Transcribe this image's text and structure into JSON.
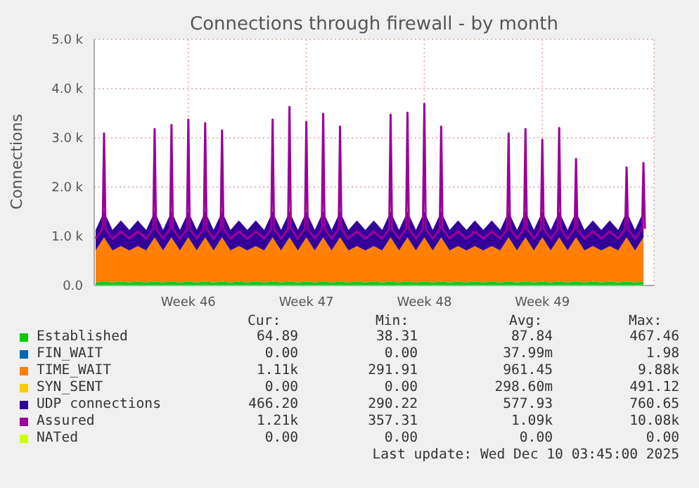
{
  "chart_data": {
    "type": "area",
    "stacked": true,
    "title": "Connections through firewall - by month",
    "ylabel": "Connections",
    "x": [
      "2025-11-08T00:00",
      "2025-11-08T12:00",
      "2025-11-09T00:00",
      "2025-11-09T12:00",
      "2025-11-10T00:00",
      "2025-11-10T12:00",
      "2025-11-11T00:00",
      "2025-11-11T12:00",
      "2025-11-12T00:00",
      "2025-11-12T12:00",
      "2025-11-13T00:00",
      "2025-11-13T12:00",
      "2025-11-14T00:00",
      "2025-11-14T12:00",
      "2025-11-15T00:00",
      "2025-11-15T12:00",
      "2025-11-16T00:00",
      "2025-11-16T12:00",
      "2025-11-17T00:00",
      "2025-11-17T12:00",
      "2025-11-18T00:00",
      "2025-11-18T12:00",
      "2025-11-19T00:00",
      "2025-11-19T12:00",
      "2025-11-20T00:00",
      "2025-11-20T12:00",
      "2025-11-21T00:00",
      "2025-11-21T12:00",
      "2025-11-22T00:00",
      "2025-11-22T12:00",
      "2025-11-23T00:00",
      "2025-11-23T12:00",
      "2025-11-24T00:00",
      "2025-11-24T12:00",
      "2025-11-25T00:00",
      "2025-11-25T12:00",
      "2025-11-26T00:00",
      "2025-11-26T12:00",
      "2025-11-27T00:00",
      "2025-11-27T12:00",
      "2025-11-28T00:00",
      "2025-11-28T12:00",
      "2025-11-29T00:00",
      "2025-11-29T12:00",
      "2025-11-30T00:00",
      "2025-11-30T12:00",
      "2025-12-01T00:00",
      "2025-12-01T12:00",
      "2025-12-02T00:00",
      "2025-12-02T12:00",
      "2025-12-03T00:00",
      "2025-12-03T12:00",
      "2025-12-04T00:00",
      "2025-12-04T12:00",
      "2025-12-05T00:00",
      "2025-12-05T12:00",
      "2025-12-06T00:00",
      "2025-12-06T12:00",
      "2025-12-07T00:00",
      "2025-12-07T12:00",
      "2025-12-08T00:00",
      "2025-12-08T12:00",
      "2025-12-09T00:00",
      "2025-12-09T12:00",
      "2025-12-10T00:00",
      "2025-12-10T12:00"
    ],
    "series": [
      {
        "name": "Established",
        "color": "#00cc00",
        "values": [
          60,
          80,
          60,
          80,
          60,
          80,
          60,
          80,
          60,
          80,
          60,
          80,
          60,
          80,
          60,
          80,
          60,
          80,
          60,
          80,
          60,
          80,
          60,
          80,
          60,
          80,
          60,
          80,
          60,
          80,
          60,
          80,
          60,
          80,
          60,
          80,
          60,
          80,
          60,
          80,
          60,
          80,
          60,
          80,
          60,
          80,
          60,
          80,
          60,
          80,
          60,
          80,
          60,
          80,
          60,
          80,
          60,
          80,
          60,
          80,
          60,
          80,
          60,
          80,
          60,
          80
        ]
      },
      {
        "name": "FIN_WAIT",
        "color": "#0066b3",
        "values": [
          null,
          null,
          null,
          null,
          null,
          null,
          null,
          null,
          null,
          null,
          null,
          null,
          null,
          null,
          null,
          null,
          null,
          null,
          null,
          null,
          null,
          null,
          null,
          null,
          null,
          null,
          null,
          null,
          null,
          null,
          null,
          null,
          null,
          null,
          null,
          null,
          null,
          null,
          null,
          null,
          null,
          null,
          null,
          null,
          null,
          null,
          null,
          null,
          null,
          null,
          null,
          null,
          null,
          null,
          null,
          null,
          null,
          null,
          null,
          null,
          null,
          null,
          null,
          null,
          null,
          null
        ]
      },
      {
        "name": "TIME_WAIT",
        "color": "#ff8000",
        "values": [
          650,
          900,
          650,
          720,
          650,
          720,
          650,
          900,
          650,
          900,
          650,
          900,
          650,
          900,
          650,
          900,
          650,
          720,
          650,
          720,
          650,
          900,
          650,
          900,
          650,
          900,
          650,
          900,
          650,
          900,
          650,
          720,
          650,
          720,
          650,
          900,
          650,
          900,
          650,
          900,
          650,
          900,
          650,
          720,
          650,
          720,
          650,
          720,
          650,
          900,
          650,
          900,
          650,
          900,
          650,
          900,
          650,
          900,
          650,
          720,
          650,
          720,
          650,
          900,
          650,
          900
        ]
      },
      {
        "name": "SYN_SENT",
        "color": "#ffcc00",
        "values": [
          null,
          null,
          null,
          null,
          null,
          null,
          null,
          null,
          null,
          null,
          null,
          null,
          null,
          null,
          null,
          null,
          null,
          null,
          null,
          null,
          null,
          null,
          null,
          null,
          null,
          null,
          null,
          null,
          null,
          null,
          null,
          null,
          null,
          null,
          null,
          null,
          null,
          null,
          null,
          null,
          null,
          null,
          null,
          null,
          null,
          null,
          null,
          null,
          null,
          null,
          null,
          null,
          null,
          null,
          null,
          null,
          null,
          null,
          null,
          null,
          null,
          null,
          null,
          null,
          null,
          null
        ]
      },
      {
        "name": "UDP connections",
        "color": "#330099",
        "values": [
          420,
          520,
          420,
          520,
          420,
          520,
          420,
          520,
          420,
          520,
          420,
          520,
          420,
          520,
          420,
          520,
          420,
          520,
          420,
          520,
          420,
          520,
          420,
          520,
          420,
          520,
          420,
          520,
          420,
          520,
          420,
          520,
          420,
          520,
          420,
          520,
          420,
          520,
          420,
          520,
          420,
          520,
          420,
          520,
          420,
          520,
          420,
          520,
          420,
          520,
          420,
          520,
          420,
          520,
          420,
          520,
          420,
          520,
          420,
          520,
          420,
          520,
          420,
          520,
          420,
          520
        ]
      },
      {
        "name": "Assured",
        "color": "#990099",
        "type": "line",
        "x": [
          "2025-11-08T00:00",
          "2025-11-08T10:00",
          "2025-11-08T12:00",
          "2025-11-08T14:00",
          "2025-11-09T00:00",
          "2025-11-09T12:00",
          "2025-11-10T00:00",
          "2025-11-10T12:00",
          "2025-11-11T00:00",
          "2025-11-11T10:00",
          "2025-11-11T12:00",
          "2025-11-11T14:00",
          "2025-11-12T00:00",
          "2025-11-12T10:00",
          "2025-11-12T12:00",
          "2025-11-12T14:00",
          "2025-11-13T00:00",
          "2025-11-13T10:00",
          "2025-11-13T12:00",
          "2025-11-13T14:00",
          "2025-11-14T00:00",
          "2025-11-14T10:00",
          "2025-11-14T12:00",
          "2025-11-14T14:00",
          "2025-11-15T00:00",
          "2025-11-15T10:00",
          "2025-11-15T12:00",
          "2025-11-15T14:00",
          "2025-11-16T00:00",
          "2025-11-16T12:00",
          "2025-11-17T00:00",
          "2025-11-17T12:00",
          "2025-11-18T00:00",
          "2025-11-18T10:00",
          "2025-11-18T12:00",
          "2025-11-18T14:00",
          "2025-11-19T00:00",
          "2025-11-19T10:00",
          "2025-11-19T12:00",
          "2025-11-19T14:00",
          "2025-11-20T00:00",
          "2025-11-20T10:00",
          "2025-11-20T12:00",
          "2025-11-20T14:00",
          "2025-11-21T00:00",
          "2025-11-21T10:00",
          "2025-11-21T12:00",
          "2025-11-21T14:00",
          "2025-11-22T00:00",
          "2025-11-22T10:00",
          "2025-11-22T12:00",
          "2025-11-22T14:00",
          "2025-11-23T00:00",
          "2025-11-23T12:00",
          "2025-11-24T00:00",
          "2025-11-24T12:00",
          "2025-11-25T00:00",
          "2025-11-25T10:00",
          "2025-11-25T12:00",
          "2025-11-25T14:00",
          "2025-11-26T00:00",
          "2025-11-26T10:00",
          "2025-11-26T12:00",
          "2025-11-26T14:00",
          "2025-11-27T00:00",
          "2025-11-27T10:00",
          "2025-11-27T12:00",
          "2025-11-27T14:00",
          "2025-11-28T00:00",
          "2025-11-28T10:00",
          "2025-11-28T12:00",
          "2025-11-28T14:00",
          "2025-11-29T00:00",
          "2025-11-29T12:00",
          "2025-11-30T00:00",
          "2025-11-30T12:00",
          "2025-12-01T00:00",
          "2025-12-01T12:00",
          "2025-12-02T00:00",
          "2025-12-02T10:00",
          "2025-12-02T12:00",
          "2025-12-02T14:00",
          "2025-12-03T00:00",
          "2025-12-03T10:00",
          "2025-12-03T12:00",
          "2025-12-03T14:00",
          "2025-12-04T00:00",
          "2025-12-04T10:00",
          "2025-12-04T12:00",
          "2025-12-04T14:00",
          "2025-12-05T00:00",
          "2025-12-05T10:00",
          "2025-12-05T12:00",
          "2025-12-05T14:00",
          "2025-12-06T00:00",
          "2025-12-06T10:00",
          "2025-12-06T12:00",
          "2025-12-06T14:00",
          "2025-12-07T00:00",
          "2025-12-07T12:00",
          "2025-12-08T00:00",
          "2025-12-08T12:00",
          "2025-12-09T00:00",
          "2025-12-09T10:00",
          "2025-12-09T12:00",
          "2025-12-09T14:00",
          "2025-12-10T00:00",
          "2025-12-10T10:00",
          "2025-12-10T12:00",
          "2025-12-10T14:00"
        ],
        "values": [
          950,
          1150,
          3090,
          1150,
          950,
          1100,
          950,
          1100,
          950,
          1150,
          3180,
          1150,
          950,
          1150,
          3260,
          1150,
          950,
          1150,
          3370,
          1150,
          950,
          1150,
          3300,
          1150,
          950,
          1150,
          3150,
          1150,
          950,
          1100,
          950,
          1100,
          950,
          1150,
          3370,
          1150,
          950,
          1150,
          3630,
          1150,
          950,
          1150,
          3320,
          1150,
          950,
          1150,
          3490,
          1150,
          950,
          1150,
          3230,
          1150,
          950,
          1100,
          950,
          1100,
          950,
          1150,
          3470,
          1150,
          950,
          1150,
          3510,
          1150,
          950,
          1150,
          3690,
          1150,
          950,
          1150,
          3230,
          1150,
          950,
          1100,
          950,
          1100,
          950,
          1100,
          950,
          1150,
          3090,
          1150,
          950,
          1150,
          3180,
          1150,
          950,
          1150,
          2960,
          1150,
          950,
          1150,
          3200,
          1150,
          950,
          1150,
          2570,
          1150,
          950,
          1100,
          950,
          1100,
          950,
          1150,
          2400,
          1150,
          950,
          1150,
          2490,
          1150
        ]
      },
      {
        "name": "NATed",
        "color": "#ccff00",
        "values": [
          null,
          null,
          null,
          null,
          null,
          null,
          null,
          null,
          null,
          null,
          null,
          null,
          null,
          null,
          null,
          null,
          null,
          null,
          null,
          null,
          null,
          null,
          null,
          null,
          null,
          null,
          null,
          null,
          null,
          null,
          null,
          null,
          null,
          null,
          null,
          null,
          null,
          null,
          null,
          null,
          null,
          null,
          null,
          null,
          null,
          null,
          null,
          null,
          null,
          null,
          null,
          null,
          null,
          null,
          null,
          null,
          null,
          null,
          null,
          null,
          null,
          null,
          null,
          null,
          null,
          null
        ]
      }
    ],
    "xlim": [
      "2025-11-07T22:00",
      "2025-12-11T03:00"
    ],
    "xticks": [
      {
        "value": "2025-11-13T12:00",
        "label": "Week 46"
      },
      {
        "value": "2025-11-20T12:00",
        "label": "Week 47"
      },
      {
        "value": "2025-11-27T12:00",
        "label": "Week 48"
      },
      {
        "value": "2025-12-04T12:00",
        "label": "Week 49"
      }
    ],
    "ylim": [
      0,
      5000
    ],
    "yticks": [
      {
        "value": 0,
        "label": "0.0"
      },
      {
        "value": 1000,
        "label": "1.0 k"
      },
      {
        "value": 2000,
        "label": "2.0 k"
      },
      {
        "value": 3000,
        "label": "3.0 k"
      },
      {
        "value": 4000,
        "label": "4.0 k"
      },
      {
        "value": 5000,
        "label": "5.0 k"
      }
    ],
    "grid": true,
    "legend": "bottom",
    "annotations": [
      "Cur:",
      "Min:",
      "Avg:",
      "Max:",
      "64.89",
      "38.31",
      "87.84",
      "467.46",
      "0.00",
      "0.00",
      "37.99m",
      "1.98",
      "1.11k",
      "291.91",
      "961.45",
      "9.88k",
      "0.00",
      "0.00",
      "298.60m",
      "491.12",
      "466.20",
      "290.22",
      "577.93",
      "760.65",
      "1.21k",
      "357.31",
      "1.09k",
      "10.08k",
      "0.00",
      "0.00",
      "0.00",
      "0.00",
      "Last update: Wed Dec 10 03:45:00 2025"
    ]
  }
}
